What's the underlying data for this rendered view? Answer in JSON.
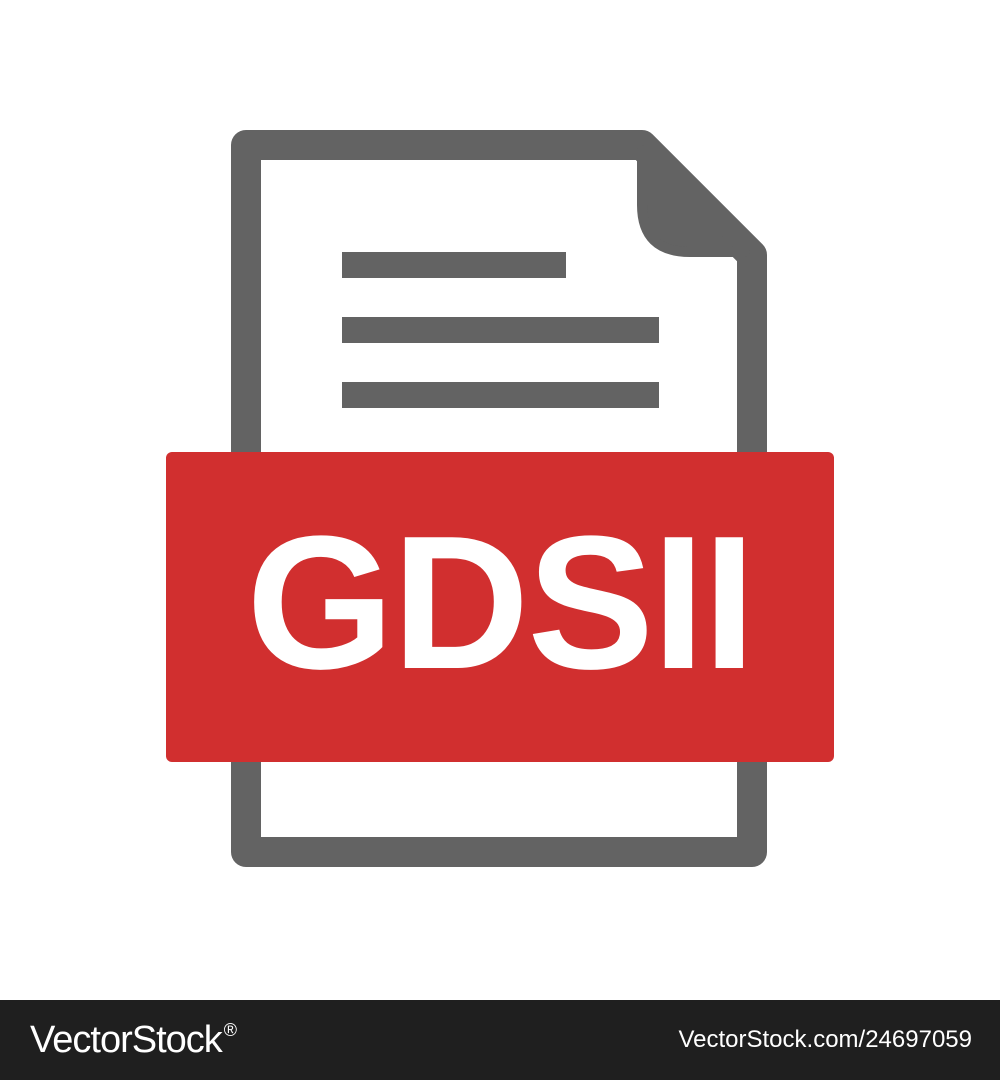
{
  "file_icon": {
    "extension_label": "GDSII",
    "band_color": "#D12F2F",
    "outline_color": "#636363",
    "paper_color": "#FFFFFF",
    "icon_name": "document-file-icon"
  },
  "watermark": {
    "brand": "VectorStock",
    "brand_mark": "®",
    "image_id": "VectorStock.com/24697059",
    "bar_color": "#1F1F1F"
  }
}
